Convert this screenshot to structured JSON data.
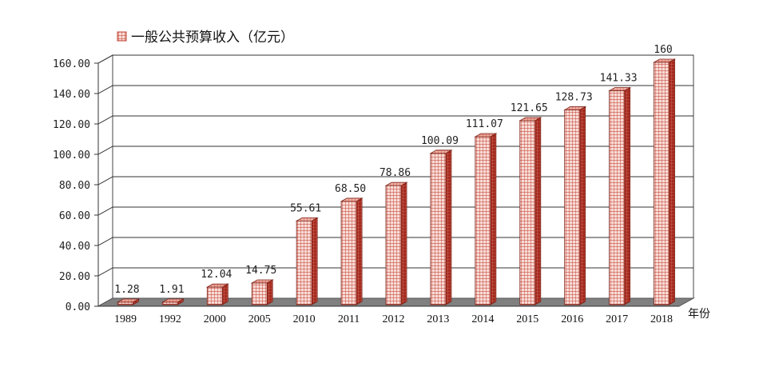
{
  "chart_data": {
    "type": "bar",
    "title": "",
    "xlabel": "年份",
    "ylabel": "",
    "ylim": [
      0,
      160
    ],
    "yticks": [
      "0.00",
      "20.00",
      "40.00",
      "60.00",
      "80.00",
      "100.00",
      "120.00",
      "140.00",
      "160.00"
    ],
    "categories": [
      "1989",
      "1992",
      "2000",
      "2005",
      "2010",
      "2011",
      "2012",
      "2013",
      "2014",
      "2015",
      "2016",
      "2017",
      "2018"
    ],
    "series": [
      {
        "name": "一般公共预算收入（亿元）",
        "values": [
          1.28,
          1.91,
          12.04,
          14.75,
          55.61,
          68.5,
          78.86,
          100.09,
          111.07,
          121.65,
          128.73,
          141.33,
          160
        ],
        "labels": [
          "1.28",
          "1.91",
          "12.04",
          "14.75",
          "55.61",
          "68.50",
          "78.86",
          "100.09",
          "111.07",
          "121.65",
          "128.73",
          "141.33",
          "160"
        ]
      }
    ],
    "legend_position": "top-left",
    "grid": true,
    "style": "3d",
    "colors": {
      "bar_fill": "#f6d3cc",
      "bar_grid": "#c0392b",
      "bar_side": "#c0392b",
      "floor": "#808080"
    }
  }
}
